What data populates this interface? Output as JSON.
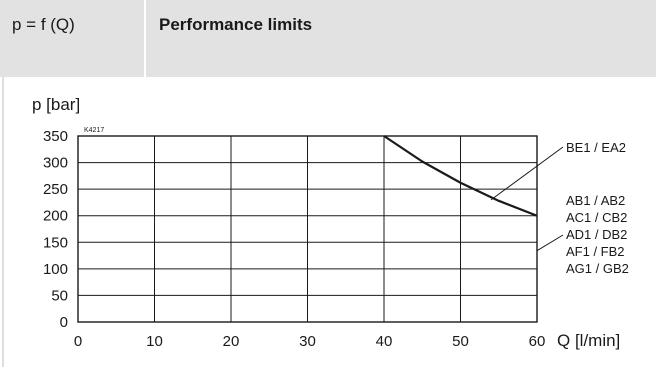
{
  "header": {
    "formula": "p = f (Q)",
    "title": "Performance limits"
  },
  "chart_data": {
    "type": "line",
    "title": "Performance limits",
    "ylabel": "p [bar]",
    "xlabel": "Q [l/min]",
    "figure_code": "K4217",
    "xlim": [
      0,
      60
    ],
    "ylim": [
      0,
      350
    ],
    "xticks": [
      0,
      10,
      20,
      30,
      40,
      50,
      60
    ],
    "yticks": [
      0,
      50,
      100,
      150,
      200,
      250,
      300,
      350
    ],
    "grid": true,
    "series": [
      {
        "x": [
          0,
          40,
          45,
          50,
          55,
          60
        ],
        "y": [
          350,
          350,
          302,
          262,
          228,
          200
        ]
      }
    ],
    "annotations": [
      {
        "lines": [
          "BE1 / EA2"
        ],
        "points_to": {
          "x": 54,
          "y": 230
        }
      },
      {
        "lines": [
          "AB1 / AB2",
          "AC1 / CB2",
          "AD1 / DB2",
          "AF1 / FB2",
          "AG1 / GB2"
        ],
        "points_to": {
          "x": 60,
          "y": 200
        }
      }
    ]
  }
}
